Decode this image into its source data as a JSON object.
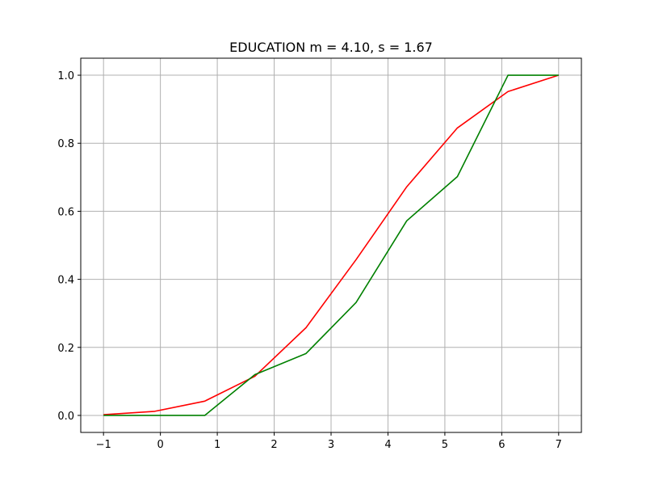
{
  "chart_data": {
    "type": "line",
    "title": "EDUCATION  m = 4.10,  s = 1.67",
    "xlabel": "",
    "ylabel": "",
    "xlim": [
      -1.4,
      7.4
    ],
    "ylim": [
      -0.05,
      1.05
    ],
    "grid": true,
    "x_ticks": [
      -1,
      0,
      1,
      2,
      3,
      4,
      5,
      6,
      7
    ],
    "x_tick_labels": [
      "−1",
      "0",
      "1",
      "2",
      "3",
      "4",
      "5",
      "6",
      "7"
    ],
    "y_ticks": [
      0.0,
      0.2,
      0.4,
      0.6,
      0.8,
      1.0
    ],
    "y_tick_labels": [
      "0.0",
      "0.2",
      "0.4",
      "0.6",
      "0.8",
      "1.0"
    ],
    "series": [
      {
        "color": "#ff0000",
        "x": [
          -1,
          -0.1,
          0.78,
          1.66,
          2.56,
          3.44,
          4.33,
          5.22,
          6.11,
          7
        ],
        "y": [
          0.002,
          0.012,
          0.042,
          0.115,
          0.258,
          0.458,
          0.672,
          0.845,
          0.952,
          1.0
        ]
      },
      {
        "color": "#008000",
        "x": [
          -1,
          -0.1,
          0.78,
          1.66,
          2.56,
          3.44,
          4.33,
          5.22,
          6.11,
          7
        ],
        "y": [
          0.0,
          0.0,
          0.0,
          0.12,
          0.182,
          0.332,
          0.572,
          0.702,
          1.0,
          1.0
        ]
      }
    ]
  }
}
